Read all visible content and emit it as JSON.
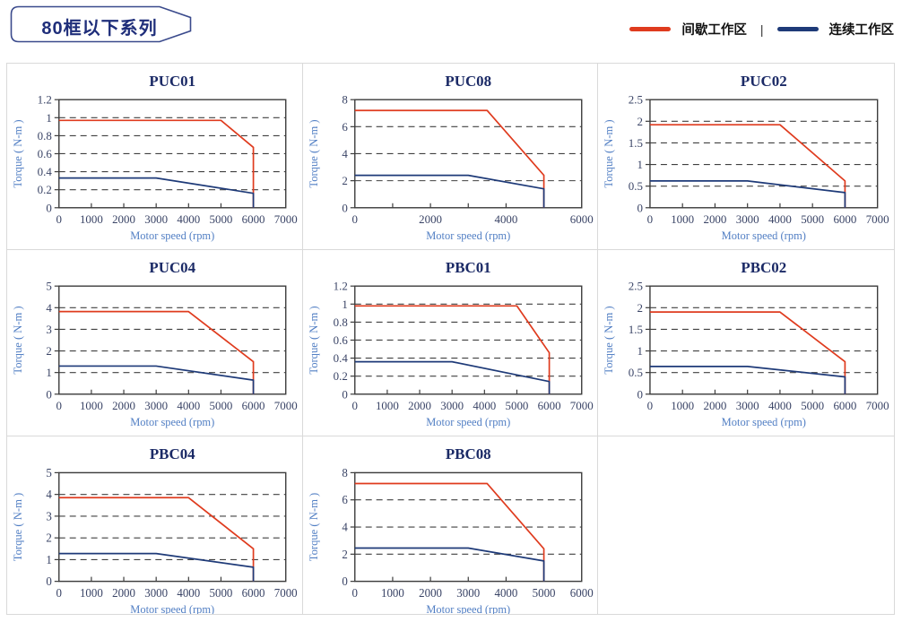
{
  "header": {
    "series_tag": "80框以下系列"
  },
  "legend": {
    "separator": "|",
    "items": [
      {
        "name": "intermittent-working-zone",
        "label": "间歇工作区",
        "color": "#df3b1e"
      },
      {
        "name": "continuous-working-zone",
        "label": "连续工作区",
        "color": "#1e3a78"
      }
    ]
  },
  "colors": {
    "accent_red": "#df3b1e",
    "accent_navy": "#1e3a78",
    "chart_border": "#3c3c3c",
    "grid_dash": "#404040",
    "tick_label": "#3a4466",
    "axis_label": "#527fc4",
    "chart_title": "#1b2a66",
    "cell_border": "#d9d9d9",
    "tag_border": "#3a4a8c",
    "tag_text": "#1f2e7a"
  },
  "chart_data": [
    {
      "type": "line",
      "title": "PUC01",
      "xlabel": "Motor speed (rpm)",
      "ylabel": "Torque ( N-m )",
      "xlim": [
        0,
        7000
      ],
      "xticks": [
        0,
        1000,
        2000,
        3000,
        4000,
        5000,
        6000,
        7000
      ],
      "xtick_minor_step": 1000,
      "ylim": [
        0,
        1.2
      ],
      "yticks": [
        0,
        0.2,
        0.4,
        0.6,
        0.8,
        1,
        1.2
      ],
      "grid": "dashed-horizontal",
      "legend_position": "none",
      "series": [
        {
          "name": "间歇工作区",
          "color": "#df3b1e",
          "points": [
            [
              0,
              0.97
            ],
            [
              5000,
              0.97
            ],
            [
              6000,
              0.67
            ],
            [
              6000,
              0
            ]
          ]
        },
        {
          "name": "连续工作区",
          "color": "#1e3a78",
          "points": [
            [
              0,
              0.33
            ],
            [
              3000,
              0.33
            ],
            [
              6000,
              0.16
            ],
            [
              6000,
              0
            ]
          ]
        }
      ]
    },
    {
      "type": "line",
      "title": "PUC08",
      "xlabel": "Motor speed (rpm)",
      "ylabel": "Torque ( N-m )",
      "xlim": [
        0,
        6000
      ],
      "xticks": [
        0,
        2000,
        4000,
        6000
      ],
      "xtick_minor_step": 1000,
      "ylim": [
        0,
        8
      ],
      "yticks": [
        0,
        2,
        4,
        6,
        8
      ],
      "grid": "dashed-horizontal",
      "legend_position": "none",
      "series": [
        {
          "name": "间歇工作区",
          "color": "#df3b1e",
          "points": [
            [
              0,
              7.2
            ],
            [
              3500,
              7.2
            ],
            [
              5000,
              2.4
            ],
            [
              5000,
              0
            ]
          ]
        },
        {
          "name": "连续工作区",
          "color": "#1e3a78",
          "points": [
            [
              0,
              2.4
            ],
            [
              3000,
              2.4
            ],
            [
              5000,
              1.4
            ],
            [
              5000,
              0
            ]
          ]
        }
      ]
    },
    {
      "type": "line",
      "title": "PUC02",
      "xlabel": "Motor speed (rpm)",
      "ylabel": "Torque ( N-m )",
      "xlim": [
        0,
        7000
      ],
      "xticks": [
        0,
        1000,
        2000,
        3000,
        4000,
        5000,
        6000,
        7000
      ],
      "xtick_minor_step": 1000,
      "ylim": [
        0,
        2.5
      ],
      "yticks": [
        0,
        0.5,
        1,
        1.5,
        2,
        2.5
      ],
      "grid": "dashed-horizontal",
      "legend_position": "none",
      "series": [
        {
          "name": "间歇工作区",
          "color": "#df3b1e",
          "points": [
            [
              0,
              1.92
            ],
            [
              4000,
              1.92
            ],
            [
              6000,
              0.62
            ],
            [
              6000,
              0
            ]
          ]
        },
        {
          "name": "连续工作区",
          "color": "#1e3a78",
          "points": [
            [
              0,
              0.62
            ],
            [
              3000,
              0.62
            ],
            [
              6000,
              0.35
            ],
            [
              6000,
              0
            ]
          ]
        }
      ]
    },
    {
      "type": "line",
      "title": "PUC04",
      "xlabel": "Motor speed (rpm)",
      "ylabel": "Torque ( N-m )",
      "xlim": [
        0,
        7000
      ],
      "xticks": [
        0,
        1000,
        2000,
        3000,
        4000,
        5000,
        6000,
        7000
      ],
      "xtick_minor_step": 1000,
      "ylim": [
        0,
        5
      ],
      "yticks": [
        0,
        1,
        2,
        3,
        4,
        5
      ],
      "grid": "dashed-horizontal",
      "legend_position": "none",
      "series": [
        {
          "name": "间歇工作区",
          "color": "#df3b1e",
          "points": [
            [
              0,
              3.82
            ],
            [
              4000,
              3.82
            ],
            [
              6000,
              1.5
            ],
            [
              6000,
              0
            ]
          ]
        },
        {
          "name": "连续工作区",
          "color": "#1e3a78",
          "points": [
            [
              0,
              1.3
            ],
            [
              3000,
              1.3
            ],
            [
              6000,
              0.65
            ],
            [
              6000,
              0
            ]
          ]
        }
      ]
    },
    {
      "type": "line",
      "title": "PBC01",
      "xlabel": "Motor speed (rpm)",
      "ylabel": "Torque ( N-m )",
      "xlim": [
        0,
        7000
      ],
      "xticks": [
        0,
        1000,
        2000,
        3000,
        4000,
        5000,
        6000,
        7000
      ],
      "xtick_minor_step": 1000,
      "ylim": [
        0,
        1.2
      ],
      "yticks": [
        0,
        0.2,
        0.4,
        0.6,
        0.8,
        1,
        1.2
      ],
      "grid": "dashed-horizontal",
      "legend_position": "none",
      "series": [
        {
          "name": "间歇工作区",
          "color": "#df3b1e",
          "points": [
            [
              0,
              0.98
            ],
            [
              5000,
              0.98
            ],
            [
              6000,
              0.46
            ],
            [
              6000,
              0
            ]
          ]
        },
        {
          "name": "连续工作区",
          "color": "#1e3a78",
          "points": [
            [
              0,
              0.36
            ],
            [
              3000,
              0.36
            ],
            [
              6000,
              0.14
            ],
            [
              6000,
              0
            ]
          ]
        }
      ]
    },
    {
      "type": "line",
      "title": "PBC02",
      "xlabel": "Motor speed (rpm)",
      "ylabel": "Torque ( N-m )",
      "xlim": [
        0,
        7000
      ],
      "xticks": [
        0,
        1000,
        2000,
        3000,
        4000,
        5000,
        6000,
        7000
      ],
      "xtick_minor_step": 1000,
      "ylim": [
        0,
        2.5
      ],
      "yticks": [
        0,
        0.5,
        1,
        1.5,
        2,
        2.5
      ],
      "grid": "dashed-horizontal",
      "legend_position": "none",
      "series": [
        {
          "name": "间歇工作区",
          "color": "#df3b1e",
          "points": [
            [
              0,
              1.9
            ],
            [
              4000,
              1.9
            ],
            [
              6000,
              0.75
            ],
            [
              6000,
              0
            ]
          ]
        },
        {
          "name": "连续工作区",
          "color": "#1e3a78",
          "points": [
            [
              0,
              0.64
            ],
            [
              3000,
              0.64
            ],
            [
              6000,
              0.4
            ],
            [
              6000,
              0
            ]
          ]
        }
      ]
    },
    {
      "type": "line",
      "title": "PBC04",
      "xlabel": "Motor speed (rpm)",
      "ylabel": "Torque ( N-m )",
      "xlim": [
        0,
        7000
      ],
      "xticks": [
        0,
        1000,
        2000,
        3000,
        4000,
        5000,
        6000,
        7000
      ],
      "xtick_minor_step": 1000,
      "ylim": [
        0,
        5
      ],
      "yticks": [
        0,
        1,
        2,
        3,
        4,
        5
      ],
      "grid": "dashed-horizontal",
      "legend_position": "none",
      "series": [
        {
          "name": "间歇工作区",
          "color": "#df3b1e",
          "points": [
            [
              0,
              3.85
            ],
            [
              4000,
              3.85
            ],
            [
              6000,
              1.5
            ],
            [
              6000,
              0
            ]
          ]
        },
        {
          "name": "连续工作区",
          "color": "#1e3a78",
          "points": [
            [
              0,
              1.28
            ],
            [
              3000,
              1.28
            ],
            [
              6000,
              0.65
            ],
            [
              6000,
              0
            ]
          ]
        }
      ]
    },
    {
      "type": "line",
      "title": "PBC08",
      "xlabel": "Motor speed (rpm)",
      "ylabel": "Torque ( N-m )",
      "xlim": [
        0,
        6000
      ],
      "xticks": [
        0,
        1000,
        2000,
        3000,
        4000,
        5000,
        6000
      ],
      "xtick_minor_step": 1000,
      "ylim": [
        0,
        8
      ],
      "yticks": [
        0,
        2,
        4,
        6,
        8
      ],
      "grid": "dashed-horizontal",
      "legend_position": "none",
      "series": [
        {
          "name": "间歇工作区",
          "color": "#df3b1e",
          "points": [
            [
              0,
              7.2
            ],
            [
              3500,
              7.2
            ],
            [
              5000,
              2.4
            ],
            [
              5000,
              0
            ]
          ]
        },
        {
          "name": "连续工作区",
          "color": "#1e3a78",
          "points": [
            [
              0,
              2.45
            ],
            [
              3000,
              2.45
            ],
            [
              5000,
              1.5
            ],
            [
              5000,
              0
            ]
          ]
        }
      ]
    }
  ]
}
